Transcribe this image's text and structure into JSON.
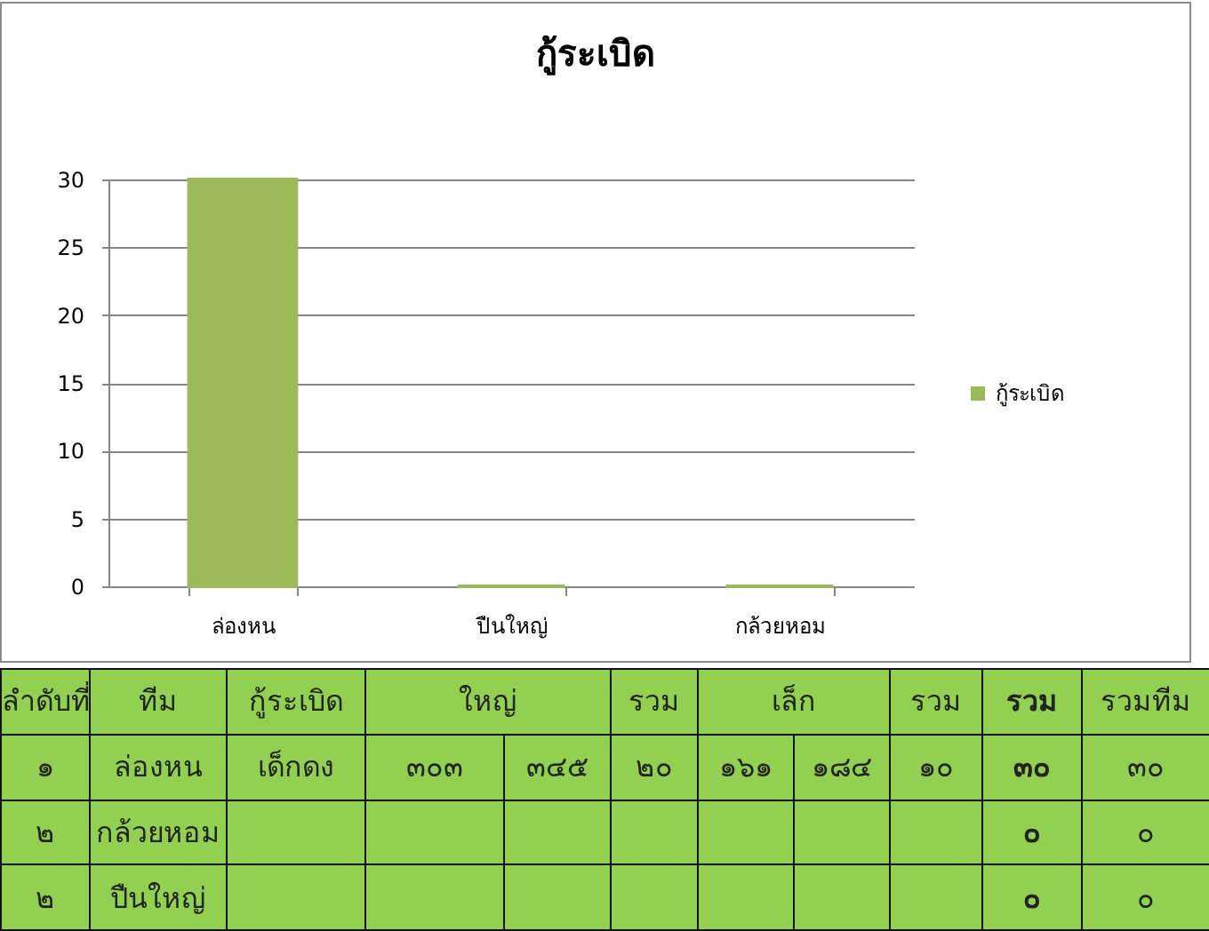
{
  "chart_data": [
    {
      "type": "bar",
      "title": "กู้ระเบิด",
      "categories": [
        "ล่องหน",
        "ปืนใหญ่",
        "กล้วยหอม"
      ],
      "series": [
        {
          "name": "กู้ระเบิด",
          "color": "#9bbb59",
          "values": [
            30,
            0,
            0
          ]
        }
      ],
      "ylim": [
        0,
        30
      ],
      "yticks": [
        0,
        5,
        10,
        15,
        20,
        25,
        30
      ],
      "grid": "y",
      "legend": "right"
    },
    {
      "type": "other",
      "categories": [
        "ลำดับที่",
        "ทีม",
        "กู้ระเบิด",
        "ใหญ่",
        null,
        "รวม",
        "เล็ก",
        null,
        "รวม",
        "รวม",
        "รวมทีม"
      ],
      "cell_labels": [
        [
          "๑",
          "ล่องหน",
          "เด็กดง",
          "๓๐๓",
          "๓๔๕",
          "๒๐",
          "๑๖๑",
          "๑๘๔",
          "๑๐",
          "๓๐",
          "๓๐"
        ],
        [
          "๒",
          "กล้วยหอม",
          null,
          null,
          null,
          null,
          null,
          null,
          null,
          "๐",
          "๐"
        ],
        [
          "๒",
          "ปืนใหญ่",
          null,
          null,
          null,
          null,
          null,
          null,
          null,
          "๐",
          "๐"
        ]
      ]
    }
  ]
}
